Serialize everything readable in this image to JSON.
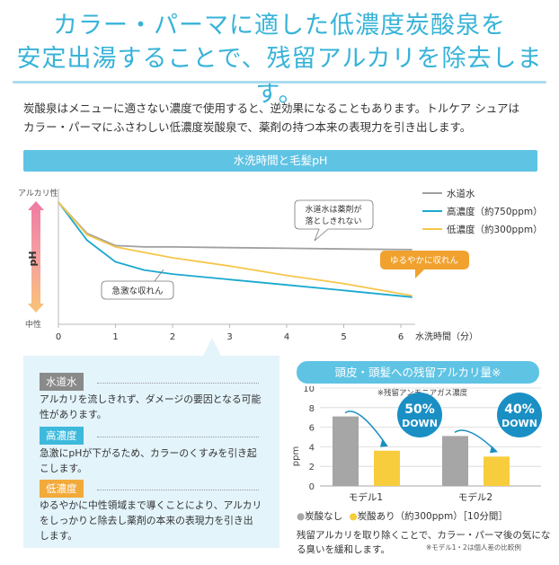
{
  "heading": {
    "line1": "カラー・パーマに適した低濃度炭酸泉を",
    "line2": "安定出湯することで、残留アルカリを除去します。"
  },
  "intro": {
    "line1": "炭酸泉はメニューに適さない濃度で使用すると、逆効果になることもあります。トルケア シュアは",
    "line2": "カラー・パーマにふさわしい低濃度炭酸泉で、薬剤の持つ本来の表現力を引き出します。"
  },
  "colors": {
    "accent": "#37b3d8",
    "tap_water": "#a0a0a0",
    "high": "#1aa9cf",
    "low": "#f5c64a",
    "orange": "#f0a12e"
  },
  "chart_data": [
    {
      "type": "line",
      "title": "水洗時間と毛髪pH",
      "xlabel": "水洗時間（分）",
      "ylabel_top": "アルカリ性",
      "ylabel_mid": "pH",
      "ylabel_bottom": "中性",
      "xlim": [
        0,
        6.5
      ],
      "x_ticks": [
        "0",
        "1",
        "2",
        "3",
        "4",
        "5",
        "6"
      ],
      "ylim": [
        0,
        1
      ],
      "series": [
        {
          "name": "水道水",
          "color": "#a0a0a0",
          "x": [
            0,
            0.5,
            1,
            1.5,
            2,
            3,
            4,
            5,
            6.2
          ],
          "y": [
            0.9,
            0.67,
            0.58,
            0.57,
            0.57,
            0.565,
            0.56,
            0.555,
            0.55
          ]
        },
        {
          "name": "高濃度（約750ppm）",
          "color": "#1aa9cf",
          "x": [
            0,
            0.5,
            1,
            1.5,
            2,
            3,
            4,
            5,
            6.2
          ],
          "y": [
            0.9,
            0.62,
            0.46,
            0.4,
            0.37,
            0.33,
            0.29,
            0.25,
            0.2
          ]
        },
        {
          "name": "低濃度（約300ppm）",
          "color": "#f5c64a",
          "x": [
            0,
            0.5,
            1,
            1.5,
            2,
            3,
            4,
            5,
            6.2
          ],
          "y": [
            0.9,
            0.66,
            0.57,
            0.53,
            0.49,
            0.43,
            0.36,
            0.3,
            0.21
          ]
        }
      ],
      "annotations": {
        "tap_note": "水道水は薬剤が\n落としきれない",
        "sudden": "急激な収れん",
        "gentle": "ゆるやかに収れん"
      }
    },
    {
      "type": "bar",
      "title": "頭皮・頭髪への残留アルカリ量※",
      "subtitle": "※残留アンモニアガス濃度",
      "ylabel": "ppm",
      "ylim": [
        0,
        10
      ],
      "y_ticks": [
        "0",
        "2",
        "4",
        "6",
        "8",
        "10"
      ],
      "categories": [
        "モデル1",
        "モデル2"
      ],
      "series": [
        {
          "name": "炭酸なし",
          "color": "#a6a6a6",
          "values": [
            7.1,
            5.1
          ]
        },
        {
          "name": "炭酸あり（約300ppm）",
          "color": "#f8cd3d",
          "values": [
            3.6,
            3.0
          ]
        }
      ],
      "badges": [
        {
          "pct": "50%",
          "word": "DOWN"
        },
        {
          "pct": "40%",
          "word": "DOWN"
        }
      ],
      "legend_suffix": "［10分間］"
    }
  ],
  "panel": {
    "items": [
      {
        "tag": "水道水",
        "text1": "アルカリを流しきれず、ダメージの要因となる可能",
        "text2": "性があります。"
      },
      {
        "tag": "高濃度",
        "text1": "急激にpHが下がるため、カラーのくすみを引き起",
        "text2": "こします。"
      },
      {
        "tag": "低濃度",
        "text1": "ゆるやかに中性領域まで導くことにより、アルカリ",
        "text2": "をしっかりと除去し薬剤の本来の表現力を引き出",
        "text3": "します。"
      }
    ]
  },
  "footer": {
    "line1": "残留アルカリを取り除くことで、カラー・パーマ後の気にな",
    "line2": "る臭いを緩和します。",
    "note": "※モデル1・2は個人差の比較例"
  }
}
